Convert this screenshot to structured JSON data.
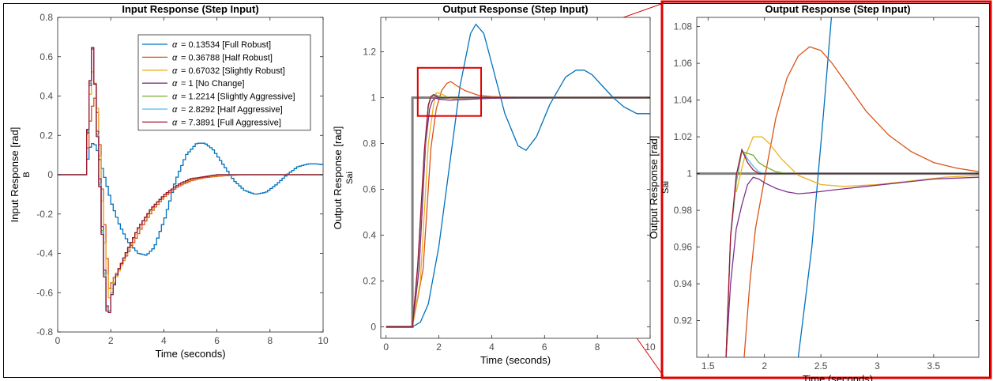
{
  "alpha_symbol": "α",
  "colors": [
    "#0072BD",
    "#D95319",
    "#EDB120",
    "#7E2F8E",
    "#77AC30",
    "#4DBEEE",
    "#A2142F"
  ],
  "reference_color": "#808080",
  "zoom_box_color": "#E00000",
  "chart_data": [
    {
      "type": "line",
      "title": "Input Response (Step Input)",
      "xlabel": "Time (seconds)",
      "ylabel": "Input Response [rad]",
      "ylabel_sub": "B",
      "xlim": [
        0,
        10
      ],
      "ylim": [
        -0.8,
        0.8
      ],
      "xticks": [
        0,
        2,
        4,
        6,
        8,
        10
      ],
      "yticks": [
        -0.8,
        -0.6,
        -0.4,
        -0.2,
        0,
        0.2,
        0.4,
        0.6,
        0.8
      ],
      "grid": false,
      "legend_position": "top-right",
      "step_style": true,
      "series": [
        {
          "name": "= 0.13534 [Full Robust]",
          "x": [
            0,
            1,
            1.15,
            1.25,
            1.4,
            1.6,
            1.8,
            2.0,
            2.3,
            2.6,
            3.0,
            3.3,
            3.6,
            4.0,
            4.4,
            4.8,
            5.2,
            5.5,
            5.8,
            6.2,
            6.6,
            7.0,
            7.4,
            7.8,
            8.2,
            8.6,
            9.0,
            9.4,
            9.7,
            10
          ],
          "y": [
            0,
            0,
            0.13,
            0.16,
            0.15,
            0.05,
            -0.05,
            -0.15,
            -0.26,
            -0.34,
            -0.4,
            -0.41,
            -0.37,
            -0.22,
            -0.03,
            0.1,
            0.16,
            0.16,
            0.13,
            0.05,
            -0.03,
            -0.08,
            -0.1,
            -0.09,
            -0.05,
            0.0,
            0.04,
            0.055,
            0.055,
            0.05
          ]
        },
        {
          "name": "= 0.36788 [Half Robust]",
          "x": [
            0,
            1,
            1.2,
            1.35,
            1.5,
            1.6,
            1.75,
            1.9,
            2.1,
            2.4,
            2.8,
            3.2,
            3.6,
            4.0,
            4.5,
            5.0,
            5.5,
            6,
            7,
            8,
            10
          ],
          "y": [
            0,
            0,
            0.3,
            0.4,
            0.28,
            0.0,
            -0.3,
            -0.58,
            -0.52,
            -0.45,
            -0.35,
            -0.25,
            -0.17,
            -0.11,
            -0.06,
            -0.03,
            -0.015,
            -0.008,
            0,
            0,
            0
          ]
        },
        {
          "name": "= 0.67032 [Slightly Robust]",
          "x": [
            0,
            1,
            1.2,
            1.3,
            1.45,
            1.6,
            1.75,
            1.9,
            2.0,
            2.3,
            2.7,
            3.1,
            3.6,
            4.0,
            4.5,
            5.0,
            5.5,
            6,
            7,
            8,
            10
          ],
          "y": [
            0,
            0,
            0.45,
            0.55,
            0.35,
            -0.05,
            -0.4,
            -0.63,
            -0.58,
            -0.48,
            -0.36,
            -0.25,
            -0.16,
            -0.1,
            -0.05,
            -0.025,
            -0.01,
            -0.005,
            0,
            0,
            0
          ]
        },
        {
          "name": "= 1 [No Change]",
          "x": [
            0,
            1,
            1.15,
            1.25,
            1.35,
            1.5,
            1.65,
            1.8,
            1.9,
            2.0,
            2.2,
            2.6,
            3.0,
            3.5,
            4.0,
            4.5,
            5.0,
            5.5,
            6,
            7,
            8,
            10
          ],
          "y": [
            0,
            0,
            0.35,
            0.68,
            0.5,
            0.1,
            -0.3,
            -0.66,
            -0.7,
            -0.6,
            -0.5,
            -0.38,
            -0.27,
            -0.17,
            -0.1,
            -0.05,
            -0.02,
            -0.01,
            0,
            0,
            0,
            0
          ]
        },
        {
          "name": "= 1.2214 [Slightly Aggressive]",
          "x": [
            0,
            1,
            1.15,
            1.25,
            1.35,
            1.5,
            1.65,
            1.8,
            1.9,
            2.0,
            2.2,
            2.6,
            3.0,
            3.5,
            4.0,
            4.5,
            5.0,
            5.5,
            6,
            7,
            8,
            10
          ],
          "y": [
            0,
            0,
            0.36,
            0.69,
            0.5,
            0.08,
            -0.32,
            -0.67,
            -0.7,
            -0.6,
            -0.5,
            -0.38,
            -0.27,
            -0.17,
            -0.1,
            -0.05,
            -0.02,
            -0.01,
            0,
            0,
            0,
            0
          ]
        },
        {
          "name": "= 2.8292 [Half Aggressive]",
          "x": [
            0,
            1,
            1.15,
            1.25,
            1.35,
            1.5,
            1.65,
            1.8,
            1.9,
            2.0,
            2.2,
            2.6,
            3.0,
            3.5,
            4.0,
            4.5,
            5.0,
            5.5,
            6,
            7,
            8,
            10
          ],
          "y": [
            0,
            0,
            0.37,
            0.69,
            0.5,
            0.07,
            -0.33,
            -0.68,
            -0.7,
            -0.6,
            -0.5,
            -0.38,
            -0.27,
            -0.17,
            -0.1,
            -0.05,
            -0.02,
            -0.01,
            0,
            0,
            0,
            0
          ]
        },
        {
          "name": "= 7.3891 [Full Aggressive]",
          "x": [
            0,
            1,
            1.15,
            1.25,
            1.35,
            1.5,
            1.65,
            1.8,
            1.9,
            2.0,
            2.2,
            2.6,
            3.0,
            3.5,
            4.0,
            4.5,
            5.0,
            5.5,
            6,
            7,
            8,
            10
          ],
          "y": [
            0,
            0,
            0.38,
            0.69,
            0.5,
            0.06,
            -0.34,
            -0.69,
            -0.71,
            -0.61,
            -0.5,
            -0.38,
            -0.27,
            -0.17,
            -0.1,
            -0.05,
            -0.02,
            -0.01,
            0,
            0,
            0,
            0
          ]
        }
      ]
    },
    {
      "type": "line",
      "title": "Output Response (Step Input)",
      "xlabel": "Time (seconds)",
      "ylabel": "Output Response [rad]",
      "ylabel_sub": "Sai",
      "xlim": [
        -0.2,
        10
      ],
      "ylim": [
        -0.05,
        1.35
      ],
      "xticks": [
        0,
        2,
        4,
        6,
        8,
        10
      ],
      "yticks": [
        0,
        0.2,
        0.4,
        0.6,
        0.8,
        1,
        1.2
      ],
      "grid": false,
      "zoom_box": {
        "x": [
          1.2,
          3.6
        ],
        "y": [
          0.92,
          1.13
        ]
      },
      "reference": {
        "x": [
          0,
          1,
          1,
          10
        ],
        "y": [
          0,
          0,
          1,
          1
        ]
      },
      "series": [
        {
          "x": [
            0,
            1,
            1.3,
            1.6,
            2.0,
            2.4,
            2.8,
            3.2,
            3.4,
            3.7,
            4.0,
            4.5,
            5.0,
            5.3,
            5.7,
            6.2,
            6.8,
            7.2,
            7.5,
            7.8,
            8.2,
            8.6,
            9.0,
            9.5,
            10
          ],
          "y": [
            0,
            0,
            0.02,
            0.1,
            0.35,
            0.7,
            1.05,
            1.28,
            1.32,
            1.28,
            1.15,
            0.93,
            0.79,
            0.77,
            0.83,
            0.97,
            1.09,
            1.12,
            1.12,
            1.1,
            1.05,
            1.0,
            0.96,
            0.93,
            0.93
          ]
        },
        {
          "x": [
            0,
            1,
            1.4,
            1.7,
            1.9,
            2.1,
            2.3,
            2.45,
            2.7,
            3.0,
            3.5,
            4.0,
            5.0,
            6,
            8,
            10
          ],
          "y": [
            0,
            0,
            0.25,
            0.78,
            0.95,
            1.03,
            1.062,
            1.07,
            1.05,
            1.03,
            1.01,
            1.005,
            1.0,
            1.0,
            1.0,
            1.0
          ]
        },
        {
          "x": [
            0,
            1,
            1.3,
            1.6,
            1.8,
            1.9,
            2.0,
            2.2,
            2.5,
            3.0,
            3.5,
            4.0,
            5.0,
            8,
            10
          ],
          "y": [
            0,
            0,
            0.2,
            0.8,
            0.97,
            1.02,
            1.02,
            1.01,
            0.995,
            0.993,
            0.995,
            0.998,
            1.0,
            1.0,
            1.0
          ]
        },
        {
          "x": [
            0,
            1,
            1.25,
            1.5,
            1.65,
            1.75,
            1.85,
            1.9,
            2.0,
            2.4,
            3.0,
            3.5,
            4.0,
            5.0,
            8,
            10
          ],
          "y": [
            0,
            0,
            0.25,
            0.8,
            0.95,
            0.985,
            0.998,
            0.997,
            0.993,
            0.989,
            0.992,
            0.995,
            0.997,
            0.999,
            1.0,
            1.0
          ]
        },
        {
          "x": [
            0,
            1,
            1.2,
            1.45,
            1.6,
            1.7,
            1.8,
            1.9,
            2.0,
            2.2,
            2.5,
            3.0,
            4.0,
            8,
            10
          ],
          "y": [
            0,
            0,
            0.25,
            0.75,
            0.96,
            1.003,
            1.013,
            1.011,
            1.006,
            1.002,
            1.0,
            1.0,
            1.0,
            1.0,
            1.0
          ]
        },
        {
          "x": [
            0,
            1,
            1.2,
            1.45,
            1.6,
            1.7,
            1.8,
            1.9,
            2.0,
            2.2,
            2.5,
            3.0,
            4.0,
            8,
            10
          ],
          "y": [
            0,
            0,
            0.26,
            0.76,
            0.965,
            1.004,
            1.013,
            1.007,
            1.002,
            1.0,
            1.0,
            1.0,
            1.0,
            1.0,
            1.0
          ]
        },
        {
          "x": [
            0,
            1,
            1.2,
            1.45,
            1.6,
            1.7,
            1.8,
            1.9,
            2.0,
            2.2,
            2.5,
            3.0,
            4.0,
            8,
            10
          ],
          "y": [
            0,
            0,
            0.27,
            0.77,
            0.968,
            1.005,
            1.013,
            1.005,
            1.0,
            1.0,
            1.0,
            1.0,
            1.0,
            1.0,
            1.0
          ]
        }
      ]
    },
    {
      "type": "line",
      "title": "Output Response (Step Input)",
      "xlabel": "Time (seconds)",
      "ylabel": "Output Response [rad]",
      "ylabel_sub": "Sai",
      "xlim": [
        1.4,
        3.9
      ],
      "ylim": [
        0.9,
        1.085
      ],
      "xticks": [
        1.5,
        2,
        2.5,
        3,
        3.5
      ],
      "yticks": [
        0.92,
        0.94,
        0.96,
        0.98,
        1,
        1.02,
        1.04,
        1.06,
        1.08
      ],
      "grid": false,
      "reference": {
        "x": [
          1.4,
          3.9
        ],
        "y": [
          1,
          1
        ]
      },
      "series": [
        {
          "x": [
            2.3,
            2.42,
            2.52,
            2.6
          ],
          "y": [
            0.9,
            0.96,
            1.03,
            1.09
          ]
        },
        {
          "x": [
            1.82,
            1.87,
            1.92,
            2.0,
            2.1,
            2.2,
            2.3,
            2.4,
            2.5,
            2.6,
            2.75,
            2.9,
            3.1,
            3.3,
            3.5,
            3.7,
            3.9
          ],
          "y": [
            0.9,
            0.94,
            0.97,
            0.997,
            1.03,
            1.052,
            1.064,
            1.069,
            1.067,
            1.06,
            1.047,
            1.034,
            1.021,
            1.012,
            1.006,
            1.003,
            1.001
          ]
        },
        {
          "x": [
            1.75,
            1.82,
            1.9,
            1.98,
            2.05,
            2.15,
            2.3,
            2.5,
            2.7,
            3.0,
            3.3,
            3.6,
            3.9
          ],
          "y": [
            0.99,
            1.008,
            1.02,
            1.02,
            1.016,
            1.008,
            0.999,
            0.994,
            0.993,
            0.994,
            0.996,
            0.998,
            0.999
          ]
        },
        {
          "x": [
            1.66,
            1.7,
            1.75,
            1.8,
            1.85,
            1.9,
            1.95,
            2.0,
            2.1,
            2.2,
            2.3,
            2.4,
            2.6,
            2.9,
            3.2,
            3.5,
            3.9
          ],
          "y": [
            0.9,
            0.94,
            0.97,
            0.983,
            0.994,
            0.998,
            0.997,
            0.995,
            0.992,
            0.99,
            0.989,
            0.9895,
            0.991,
            0.993,
            0.995,
            0.997,
            0.998
          ]
        },
        {
          "x": [
            1.66,
            1.7,
            1.75,
            1.8,
            1.85,
            1.9,
            1.95,
            2.0,
            2.1,
            2.2,
            2.4,
            3.0,
            3.9
          ],
          "y": [
            0.9,
            0.965,
            0.995,
            1.012,
            1.011,
            1.01,
            1.006,
            1.004,
            1.001,
            1.0,
            1.0,
            1.0,
            1.0
          ]
        },
        {
          "x": [
            1.66,
            1.7,
            1.75,
            1.8,
            1.85,
            1.9,
            1.95,
            2.0,
            2.1,
            2.4,
            3.0,
            3.9
          ],
          "y": [
            0.9,
            0.965,
            0.997,
            1.013,
            1.008,
            1.004,
            1.001,
            1.0,
            1.0,
            1.0,
            1.0,
            1.0
          ]
        },
        {
          "x": [
            1.66,
            1.7,
            1.75,
            1.8,
            1.85,
            1.9,
            1.95,
            2.0,
            2.4,
            3.0,
            3.9
          ],
          "y": [
            0.9,
            0.966,
            0.999,
            1.013,
            1.006,
            1.002,
            1.0,
            1.0,
            1.0,
            1.0,
            1.0
          ]
        }
      ]
    }
  ]
}
